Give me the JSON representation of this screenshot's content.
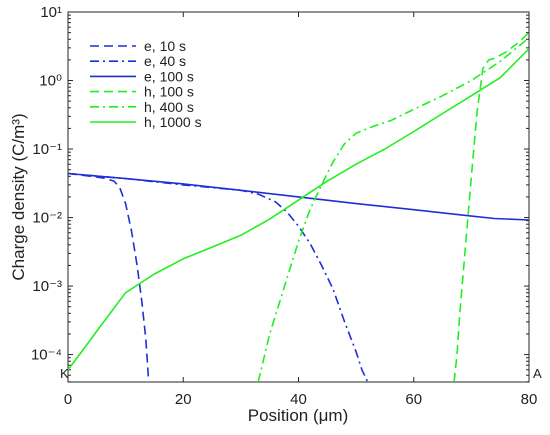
{
  "chart_data": {
    "type": "line",
    "xlabel": "Position (μm)",
    "ylabel": "Charge density (C/m³)",
    "xlim": [
      0,
      80
    ],
    "ylim_log10": [
      -4.4,
      1
    ],
    "yscale": "log",
    "grid": false,
    "legend_position": "top-left",
    "x_ticks": [
      {
        "value": 0,
        "label": "0"
      },
      {
        "value": 20,
        "label": "20"
      },
      {
        "value": 40,
        "label": "40"
      },
      {
        "value": 60,
        "label": "60"
      },
      {
        "value": 80,
        "label": "80"
      }
    ],
    "y_ticks": [
      {
        "exp": -4,
        "label": "10⁻⁴"
      },
      {
        "exp": -3,
        "label": "10⁻³"
      },
      {
        "exp": -2,
        "label": "10⁻²"
      },
      {
        "exp": -1,
        "label": "10⁻¹"
      },
      {
        "exp": 0,
        "label": "10⁰"
      },
      {
        "exp": 1,
        "label": "10¹"
      }
    ],
    "corner_labels": {
      "left": "K",
      "right": "A"
    },
    "series": [
      {
        "name": "e, 10 s",
        "color": "#1f2fd6",
        "dash": "dashed",
        "x": [
          0,
          3,
          6,
          8,
          9,
          10,
          11,
          12,
          12.8,
          13.5,
          14
        ],
        "y": [
          0.044,
          0.041,
          0.038,
          0.034,
          0.027,
          0.016,
          0.0065,
          0.002,
          0.0006,
          0.00017,
          4e-05
        ]
      },
      {
        "name": "e, 40 s",
        "color": "#1f2fd6",
        "dash": "dashdot",
        "x": [
          0,
          10,
          20,
          30,
          33,
          36,
          38,
          40,
          42,
          44,
          46,
          48,
          50,
          51,
          52
        ],
        "y": [
          0.044,
          0.037,
          0.03,
          0.025,
          0.022,
          0.017,
          0.012,
          0.0075,
          0.0042,
          0.002,
          0.0009,
          0.0003,
          0.00011,
          6e-05,
          4e-05
        ]
      },
      {
        "name": "e, 100 s",
        "color": "#1f2fd6",
        "dash": "solid",
        "x": [
          0,
          10,
          20,
          30,
          40,
          50,
          60,
          70,
          74,
          80
        ],
        "y": [
          0.044,
          0.037,
          0.031,
          0.025,
          0.02,
          0.016,
          0.013,
          0.0105,
          0.0097,
          0.0092
        ]
      },
      {
        "name": "h, 100 s",
        "color": "#22ee22",
        "dash": "dashed",
        "x": [
          67,
          67.5,
          68,
          69,
          70,
          71,
          72,
          73,
          74,
          76,
          78,
          80
        ],
        "y": [
          4e-05,
          0.0001,
          0.0004,
          0.004,
          0.04,
          0.35,
          1.5,
          2.0,
          2.1,
          2.6,
          3.5,
          5.0
        ]
      },
      {
        "name": "h, 400 s",
        "color": "#22ee22",
        "dash": "dashdot",
        "x": [
          33,
          35,
          38,
          40,
          42,
          44,
          46,
          48,
          50,
          52,
          54,
          56,
          60,
          65,
          70,
          75,
          80
        ],
        "y": [
          4e-05,
          0.0002,
          0.0013,
          0.0045,
          0.013,
          0.03,
          0.065,
          0.12,
          0.17,
          0.2,
          0.23,
          0.26,
          0.38,
          0.6,
          1.0,
          1.9,
          4.2
        ]
      },
      {
        "name": "h, 1000 s",
        "color": "#22ee22",
        "dash": "solid",
        "x": [
          0,
          2,
          5,
          10,
          15,
          20,
          25,
          30,
          35,
          40,
          45,
          50,
          55,
          60,
          65,
          70,
          75,
          80
        ],
        "y": [
          6e-05,
          0.0001,
          0.00022,
          0.0008,
          0.0015,
          0.0025,
          0.0037,
          0.0055,
          0.0095,
          0.018,
          0.034,
          0.06,
          0.1,
          0.18,
          0.33,
          0.6,
          1.1,
          2.9
        ]
      }
    ]
  }
}
